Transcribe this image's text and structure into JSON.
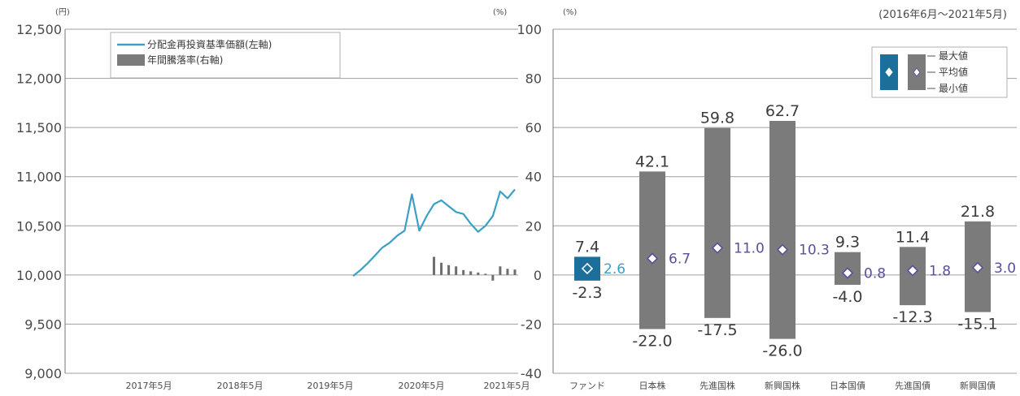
{
  "left_chart": {
    "unit_left": "(円)",
    "unit_right": "(%)",
    "legend": [
      "分配金再投資基準価額(左軸)",
      "年間騰落率(右軸)"
    ]
  },
  "right_chart": {
    "unit": "(%)",
    "period": "(2016年6月〜2021年5月)",
    "legend": {
      "max": "最大値",
      "avg": "平均値",
      "min": "最小値"
    }
  },
  "colors": {
    "fund": "#1b6f9a",
    "asset": "#7b7b7b",
    "line": "#3aa0c6",
    "avg_text_fund": "#3aa0c6",
    "avg_text_asset": "#5b4f9a",
    "grid": "#9e9e9e"
  },
  "chart_data": [
    {
      "type": "line",
      "title": "",
      "xlabel": "",
      "ylabel": "(円)",
      "y2label": "(%)",
      "ylim": [
        9000,
        12500
      ],
      "y2lim": [
        -40,
        100
      ],
      "yticks": [
        "12,500",
        "12,000",
        "11,500",
        "11,000",
        "10,500",
        "10,000",
        "9,500",
        "9,000"
      ],
      "y2ticks": [
        "100",
        "80",
        "60",
        "40",
        "20",
        "0",
        "-20",
        "-40"
      ],
      "xticks": [
        "2017年5月",
        "2018年5月",
        "2019年5月",
        "2020年5月",
        "2021年5月"
      ],
      "series": [
        {
          "name": "分配金再投資基準価額(左軸)",
          "axis": "left",
          "x": [
            "2019-07",
            "2019-08",
            "2019-09",
            "2019-10",
            "2019-11",
            "2019-12",
            "2020-01",
            "2020-02",
            "2020-03",
            "2020-04",
            "2020-05",
            "2020-06",
            "2020-07",
            "2020-08",
            "2020-09",
            "2020-10",
            "2020-11",
            "2020-12",
            "2021-01",
            "2021-02",
            "2021-03",
            "2021-04",
            "2021-05"
          ],
          "values": [
            9990,
            10050,
            10120,
            10200,
            10280,
            10330,
            10400,
            10450,
            10820,
            10450,
            10600,
            10720,
            10760,
            10700,
            10640,
            10620,
            10520,
            10440,
            10500,
            10600,
            10850,
            10780,
            10870
          ]
        },
        {
          "name": "年間騰落率(右軸)",
          "axis": "right",
          "type": "bar",
          "x": [
            "2020-06",
            "2020-07",
            "2020-08",
            "2020-09",
            "2020-10",
            "2020-11",
            "2020-12",
            "2021-01",
            "2021-02",
            "2021-03",
            "2021-04",
            "2021-05"
          ],
          "values": [
            7.4,
            5.0,
            4.0,
            3.5,
            2.0,
            1.5,
            1.0,
            0.5,
            -2.3,
            3.5,
            2.5,
            2.2
          ]
        }
      ]
    },
    {
      "type": "bar",
      "subtype": "range",
      "title": "",
      "ylabel": "(%)",
      "ylim": [
        -40,
        100
      ],
      "yticks": [
        "100",
        "80",
        "60",
        "40",
        "20",
        "0",
        "-20",
        "-40"
      ],
      "categories": [
        "ファンド",
        "日本株",
        "先進国株",
        "新興国株",
        "日本国債",
        "先進国債",
        "新興国債"
      ],
      "max": [
        7.4,
        42.1,
        59.8,
        62.7,
        9.3,
        11.4,
        21.8
      ],
      "avg": [
        2.6,
        6.7,
        11.0,
        10.3,
        0.8,
        1.8,
        3.0
      ],
      "min": [
        -2.3,
        -22.0,
        -17.5,
        -26.0,
        -4.0,
        -12.3,
        -15.1
      ],
      "max_labels": [
        "7.4",
        "42.1",
        "59.8",
        "62.7",
        "9.3",
        "11.4",
        "21.8"
      ],
      "avg_labels": [
        "2.6",
        "6.7",
        "11.0",
        "10.3",
        "0.8",
        "1.8",
        "3.0"
      ],
      "min_labels": [
        "-2.3",
        "-22.0",
        "-17.5",
        "-26.0",
        "-4.0",
        "-12.3",
        "-15.1"
      ]
    }
  ]
}
